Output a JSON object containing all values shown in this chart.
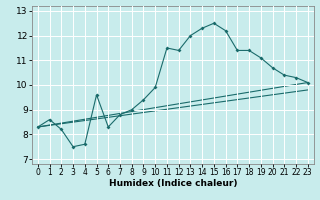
{
  "xlabel": "Humidex (Indice chaleur)",
  "ylabel": "",
  "bg_color": "#c8ecec",
  "line_color": "#1a6b6b",
  "grid_color": "#ffffff",
  "xlim": [
    -0.5,
    23.5
  ],
  "ylim": [
    6.8,
    13.2
  ],
  "yticks": [
    7,
    8,
    9,
    10,
    11,
    12,
    13
  ],
  "xticks": [
    0,
    1,
    2,
    3,
    4,
    5,
    6,
    7,
    8,
    9,
    10,
    11,
    12,
    13,
    14,
    15,
    16,
    17,
    18,
    19,
    20,
    21,
    22,
    23
  ],
  "line1_x": [
    0,
    1,
    2,
    3,
    4,
    5,
    6,
    7,
    8,
    9,
    10,
    11,
    12,
    13,
    14,
    15,
    16,
    17,
    18,
    19,
    20,
    21,
    22,
    23
  ],
  "line1_y": [
    8.3,
    8.6,
    8.2,
    7.5,
    7.6,
    9.6,
    8.3,
    8.8,
    9.0,
    9.4,
    9.9,
    11.5,
    11.4,
    12.0,
    12.3,
    12.5,
    12.2,
    11.4,
    11.4,
    11.1,
    10.7,
    10.4,
    10.3,
    10.1
  ],
  "line2_x": [
    0,
    23
  ],
  "line2_y": [
    8.3,
    10.1
  ],
  "line3_x": [
    0,
    23
  ],
  "line3_y": [
    8.3,
    9.8
  ]
}
